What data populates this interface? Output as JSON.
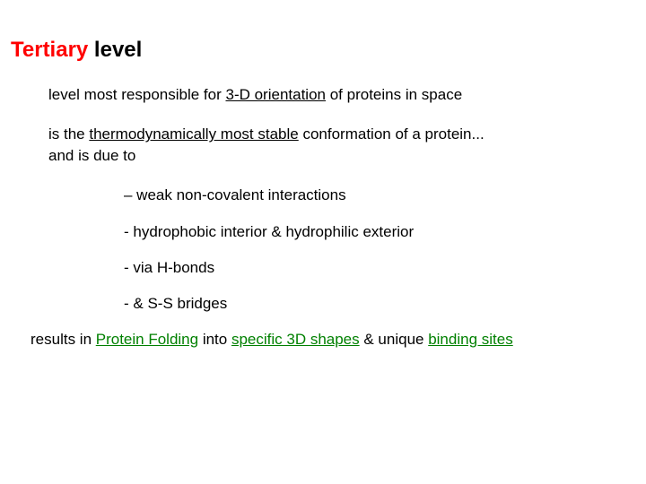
{
  "title": {
    "part1": "Tertiary",
    "part2": " level"
  },
  "line1": {
    "a": "level most responsible for ",
    "b": "3-D orientation",
    "c": " of proteins in space"
  },
  "line2": {
    "a": "is the ",
    "b": "thermodynamically most stable",
    "c": " conformation of a protein..."
  },
  "line3": "and is due to",
  "bullets": {
    "b1": "– weak non-covalent interactions",
    "b2": "- hydrophobic interior & hydrophilic exterior",
    "b3": "- via H-bonds",
    "b4": "- & S-S bridges"
  },
  "result": {
    "a": "results in ",
    "b": "Protein Folding",
    "c": " into ",
    "d": "specific 3D shapes",
    "e": " & unique ",
    "f": "binding sites"
  },
  "colors": {
    "heading_highlight": "#ff0000",
    "body_text": "#000000",
    "accent_green": "#008000",
    "background": "#ffffff"
  },
  "typography": {
    "title_fontsize": 24,
    "body_fontsize": 17,
    "font_family": "Comic Sans MS"
  }
}
